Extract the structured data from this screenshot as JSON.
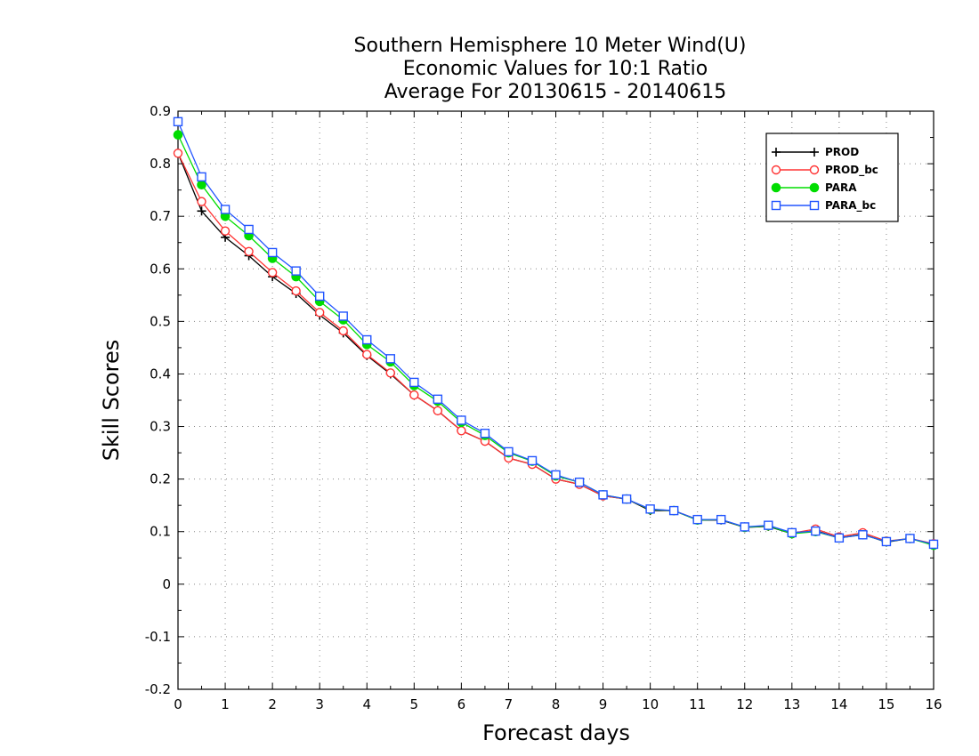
{
  "chart_data": {
    "type": "line",
    "title": [
      "Southern Hemisphere 10 Meter Wind(U)",
      "Economic Values for 10:1 Ratio",
      "Average For 20130615 - 20140615"
    ],
    "xlabel": "Forecast days",
    "ylabel": "Skill Scores",
    "xlim": [
      0,
      16
    ],
    "ylim": [
      -0.2,
      0.9
    ],
    "xticks": [
      0,
      1,
      2,
      3,
      4,
      5,
      6,
      7,
      8,
      9,
      10,
      11,
      12,
      13,
      14,
      15,
      16
    ],
    "xtick_labels": [
      "0",
      "1",
      "2",
      "3",
      "4",
      "5",
      "6",
      "7",
      "8",
      "9",
      "10",
      "11",
      "12",
      "13",
      "14",
      "15",
      "16"
    ],
    "yticks": [
      -0.2,
      -0.1,
      0,
      0.1,
      0.2,
      0.3,
      0.4,
      0.5,
      0.6,
      0.7,
      0.8,
      0.9
    ],
    "ytick_labels": [
      "-0.2",
      "-0.1",
      "0",
      "0.1",
      "0.2",
      "0.3",
      "0.4",
      "0.5",
      "0.6",
      "0.7",
      "0.8",
      "0.9"
    ],
    "grid": true,
    "legend_position": "top-right",
    "x": [
      0,
      0.5,
      1,
      1.5,
      2,
      2.5,
      3,
      3.5,
      4,
      4.5,
      5,
      5.5,
      6,
      6.5,
      7,
      7.5,
      8,
      8.5,
      9,
      9.5,
      10,
      10.5,
      11,
      11.5,
      12,
      12.5,
      13,
      13.5,
      14,
      14.5,
      15,
      15.5,
      16
    ],
    "series": [
      {
        "name": "PROD",
        "color": "#000000",
        "marker": "plus",
        "values": [
          0.82,
          0.71,
          0.66,
          0.625,
          0.585,
          0.553,
          0.512,
          0.478,
          0.435,
          0.4,
          0.36,
          0.33,
          0.292,
          0.272,
          0.24,
          0.228,
          0.2,
          0.19,
          0.168,
          0.162,
          0.14,
          0.14,
          0.122,
          0.122,
          0.108,
          0.11,
          0.096,
          0.102,
          0.088,
          0.095,
          0.08,
          0.087,
          0.075
        ]
      },
      {
        "name": "PROD_bc",
        "color": "#ff3333",
        "marker": "open-circle",
        "values": [
          0.82,
          0.728,
          0.672,
          0.633,
          0.593,
          0.558,
          0.517,
          0.482,
          0.437,
          0.402,
          0.36,
          0.33,
          0.292,
          0.272,
          0.24,
          0.228,
          0.2,
          0.19,
          0.168,
          0.162,
          0.142,
          0.14,
          0.123,
          0.123,
          0.108,
          0.111,
          0.097,
          0.105,
          0.09,
          0.098,
          0.082,
          0.087,
          0.077
        ]
      },
      {
        "name": "PARA",
        "color": "#00dd00",
        "marker": "filled-circle",
        "values": [
          0.855,
          0.76,
          0.7,
          0.663,
          0.62,
          0.585,
          0.538,
          0.503,
          0.456,
          0.423,
          0.378,
          0.348,
          0.308,
          0.283,
          0.25,
          0.234,
          0.206,
          0.194,
          0.17,
          0.162,
          0.142,
          0.14,
          0.122,
          0.123,
          0.108,
          0.111,
          0.096,
          0.1,
          0.088,
          0.094,
          0.081,
          0.087,
          0.074
        ]
      },
      {
        "name": "PARA_bc",
        "color": "#2255ff",
        "marker": "open-square",
        "values": [
          0.88,
          0.775,
          0.713,
          0.675,
          0.631,
          0.596,
          0.548,
          0.51,
          0.465,
          0.429,
          0.384,
          0.352,
          0.312,
          0.287,
          0.252,
          0.235,
          0.208,
          0.194,
          0.17,
          0.162,
          0.143,
          0.14,
          0.123,
          0.123,
          0.109,
          0.112,
          0.098,
          0.101,
          0.088,
          0.094,
          0.081,
          0.087,
          0.076
        ]
      }
    ]
  }
}
